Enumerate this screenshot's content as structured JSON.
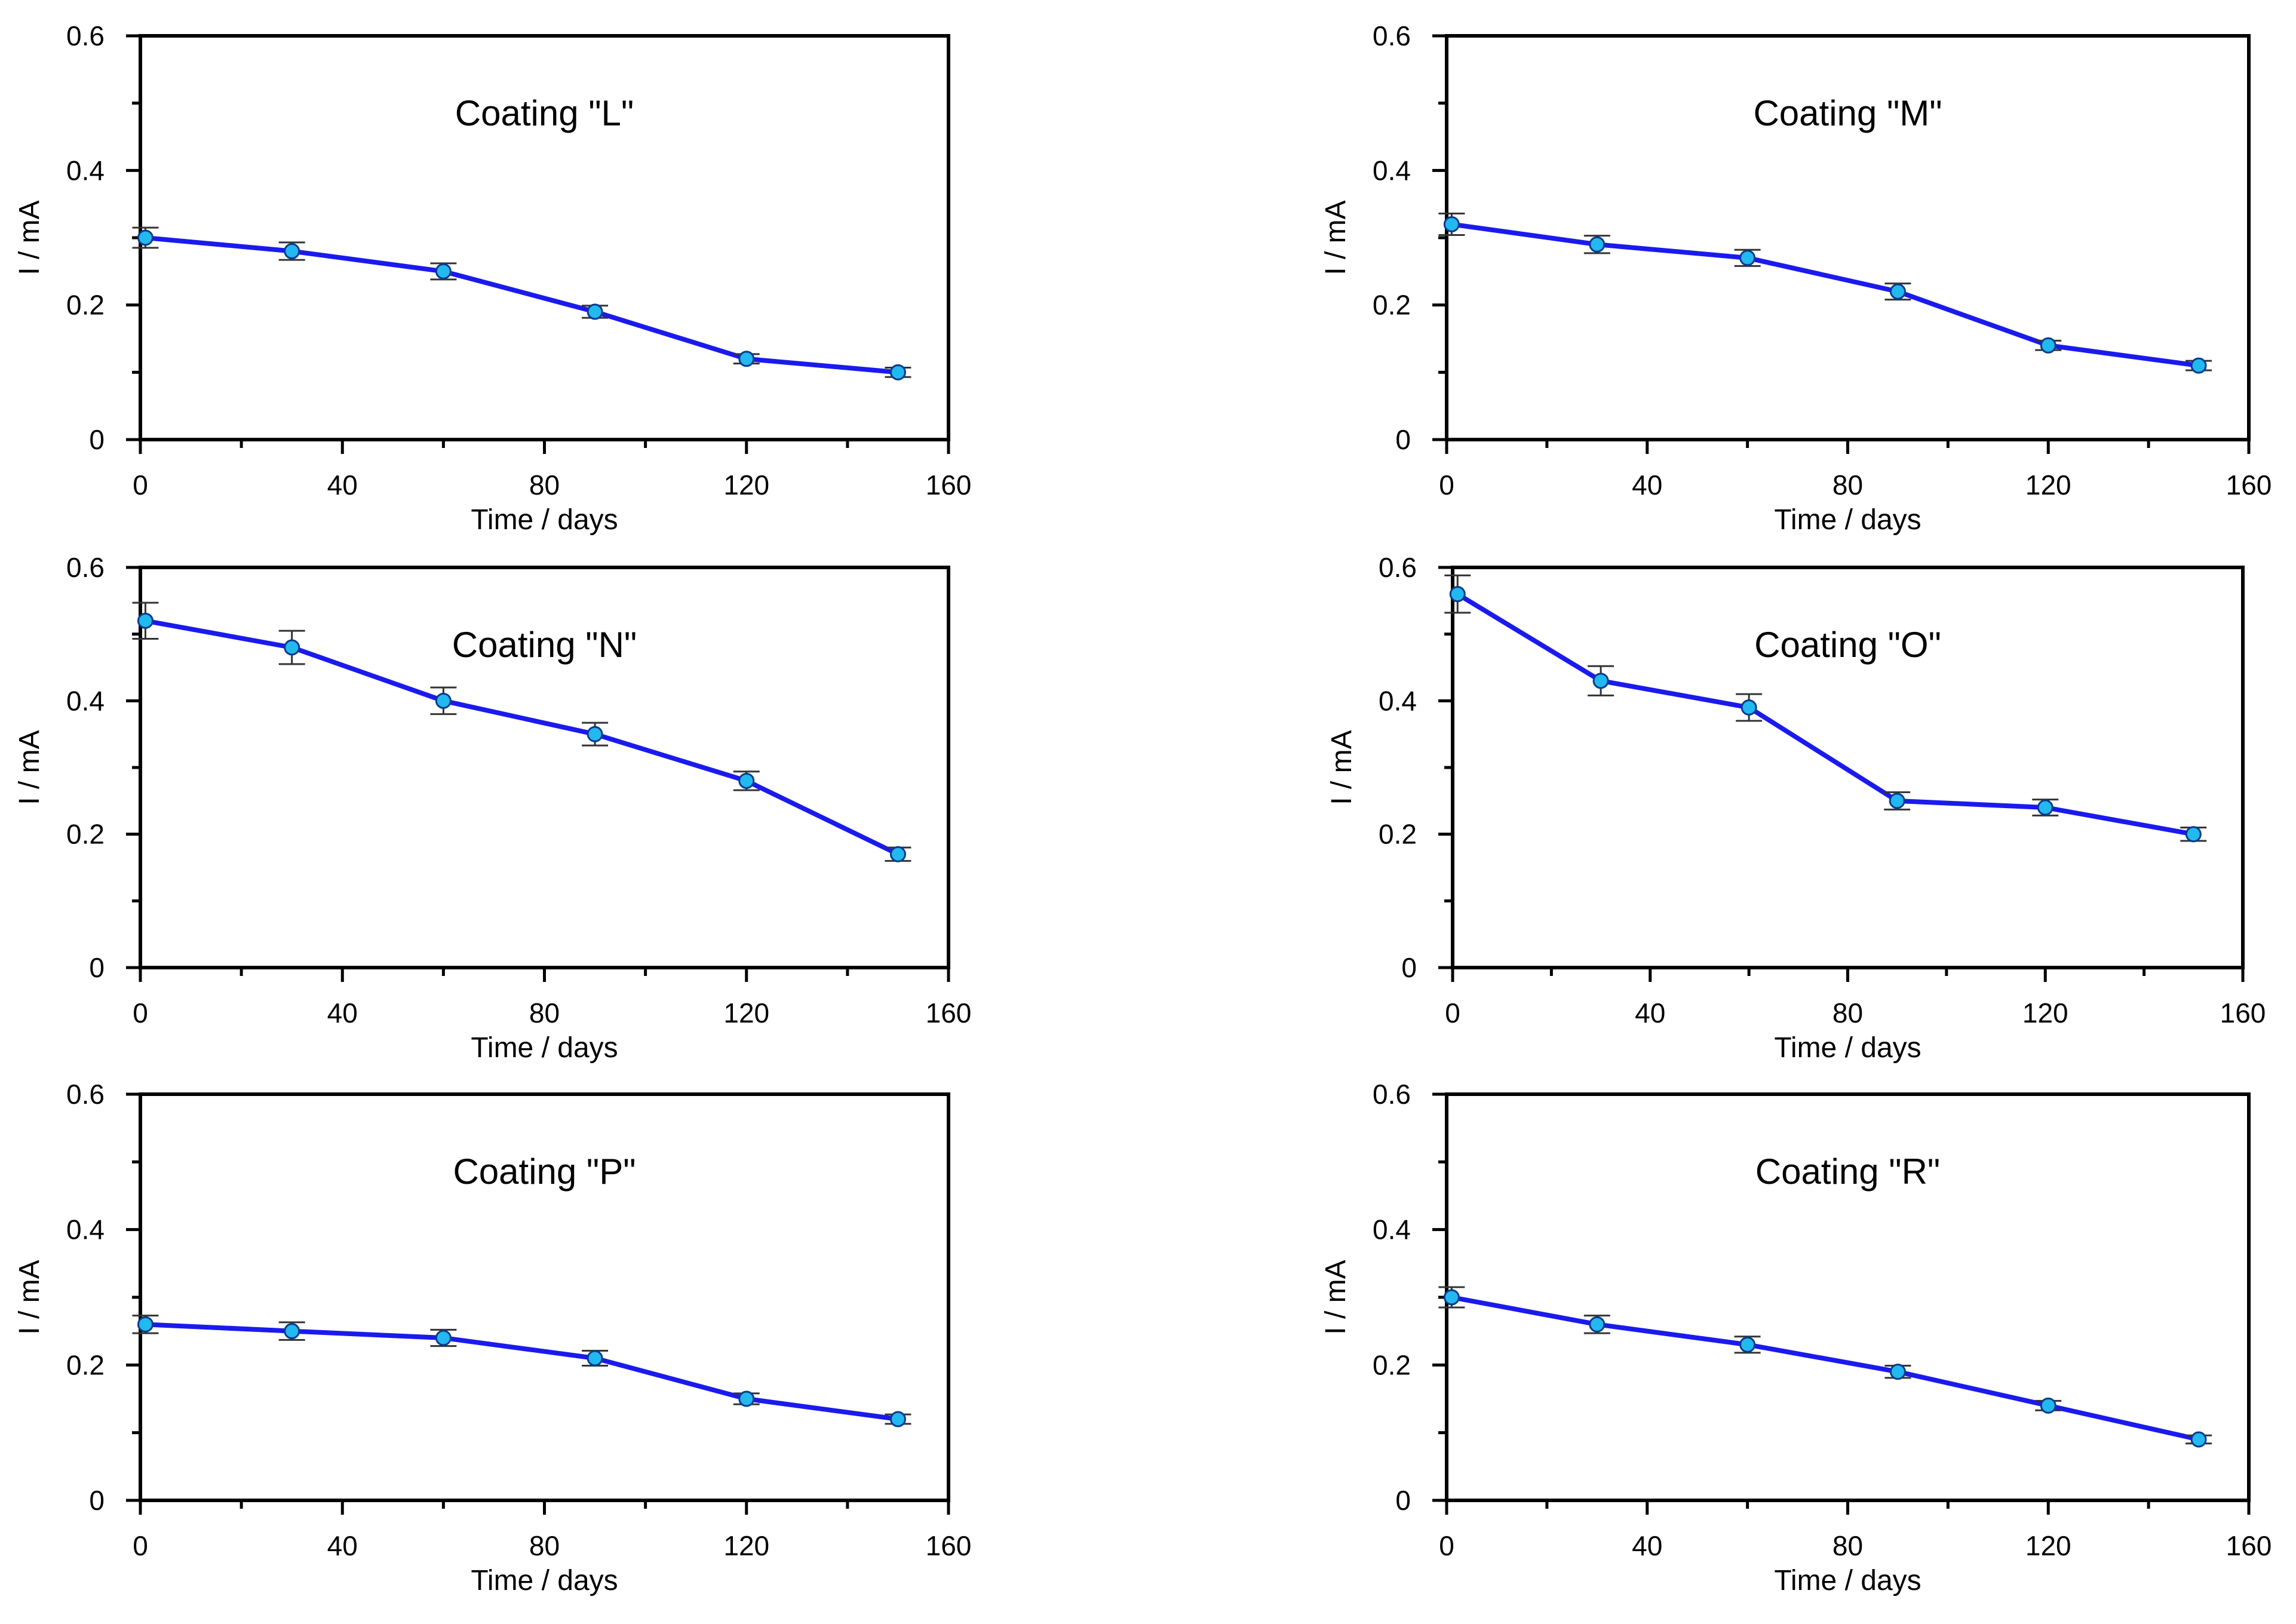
{
  "chart_data": [
    {
      "type": "line",
      "title": "Coating \"L\"",
      "xlabel": "Time / days",
      "ylabel": "I / mA",
      "xlim": [
        0,
        160
      ],
      "ylim": [
        0,
        0.6
      ],
      "xticks": [
        "0",
        "40",
        "80",
        "120",
        "160"
      ],
      "yticks": [
        "0",
        "0.2",
        "0.4",
        "0.6"
      ],
      "x": [
        1,
        30,
        60,
        90,
        120,
        150
      ],
      "y": [
        0.3,
        0.28,
        0.25,
        0.19,
        0.12,
        0.1
      ],
      "err": [
        0.015,
        0.013,
        0.012,
        0.009,
        0.007,
        0.007
      ],
      "series_name": "I"
    },
    {
      "type": "line",
      "title": "Coating \"M\"",
      "xlabel": "Time / days",
      "ylabel": "I / mA",
      "xlim": [
        0,
        160
      ],
      "ylim": [
        0,
        0.6
      ],
      "xticks": [
        "0",
        "40",
        "80",
        "120",
        "160"
      ],
      "yticks": [
        "0",
        "0.2",
        "0.4",
        "0.6"
      ],
      "x": [
        1,
        30,
        60,
        90,
        120,
        150
      ],
      "y": [
        0.32,
        0.29,
        0.27,
        0.22,
        0.14,
        0.11
      ],
      "err": [
        0.016,
        0.013,
        0.012,
        0.012,
        0.007,
        0.007
      ],
      "series_name": "I"
    },
    {
      "type": "line",
      "title": "Coating \"N\"",
      "xlabel": "Time / days",
      "ylabel": "I / mA",
      "xlim": [
        0,
        160
      ],
      "ylim": [
        0,
        0.6
      ],
      "xticks": [
        "0",
        "40",
        "80",
        "120",
        "160"
      ],
      "yticks": [
        "0",
        "0.2",
        "0.4",
        "0.6"
      ],
      "x": [
        1,
        30,
        60,
        90,
        120,
        150
      ],
      "y": [
        0.52,
        0.48,
        0.4,
        0.35,
        0.28,
        0.17
      ],
      "err": [
        0.027,
        0.025,
        0.02,
        0.017,
        0.014,
        0.01
      ],
      "series_name": "I"
    },
    {
      "type": "line",
      "title": "Coating \"O\"",
      "xlabel": "Time / days",
      "ylabel": "I / mA",
      "xlim": [
        0,
        160
      ],
      "ylim": [
        0,
        0.6
      ],
      "xticks": [
        "0",
        "40",
        "80",
        "120",
        "160"
      ],
      "yticks": [
        "0",
        "0.2",
        "0.4",
        "0.6"
      ],
      "x": [
        1,
        30,
        60,
        90,
        120,
        150
      ],
      "y": [
        0.56,
        0.43,
        0.39,
        0.25,
        0.24,
        0.2
      ],
      "err": [
        0.028,
        0.022,
        0.02,
        0.013,
        0.012,
        0.01
      ],
      "series_name": "I"
    },
    {
      "type": "line",
      "title": "Coating \"P\"",
      "xlabel": "Time / days",
      "ylabel": "I / mA",
      "xlim": [
        0,
        160
      ],
      "ylim": [
        0,
        0.6
      ],
      "xticks": [
        "0",
        "40",
        "80",
        "120",
        "160"
      ],
      "yticks": [
        "0",
        "0.2",
        "0.4",
        "0.6"
      ],
      "x": [
        1,
        30,
        60,
        90,
        120,
        150
      ],
      "y": [
        0.26,
        0.25,
        0.24,
        0.21,
        0.15,
        0.12
      ],
      "err": [
        0.013,
        0.013,
        0.012,
        0.011,
        0.008,
        0.007
      ],
      "series_name": "I"
    },
    {
      "type": "line",
      "title": "Coating \"R\"",
      "xlabel": "Time / days",
      "ylabel": "I / mA",
      "xlim": [
        0,
        160
      ],
      "ylim": [
        0,
        0.6
      ],
      "xticks": [
        "0",
        "40",
        "80",
        "120",
        "160"
      ],
      "yticks": [
        "0",
        "0.2",
        "0.4",
        "0.6"
      ],
      "x": [
        1,
        30,
        60,
        90,
        120,
        150
      ],
      "y": [
        0.3,
        0.26,
        0.23,
        0.19,
        0.14,
        0.09
      ],
      "err": [
        0.015,
        0.013,
        0.012,
        0.009,
        0.007,
        0.006
      ],
      "series_name": "I"
    }
  ],
  "colors": {
    "line": "#1a1aee",
    "marker_fill": "#22b8f0",
    "marker_stroke": "#0a3a8a",
    "error_bar": "#333333",
    "axes": "#000000"
  }
}
